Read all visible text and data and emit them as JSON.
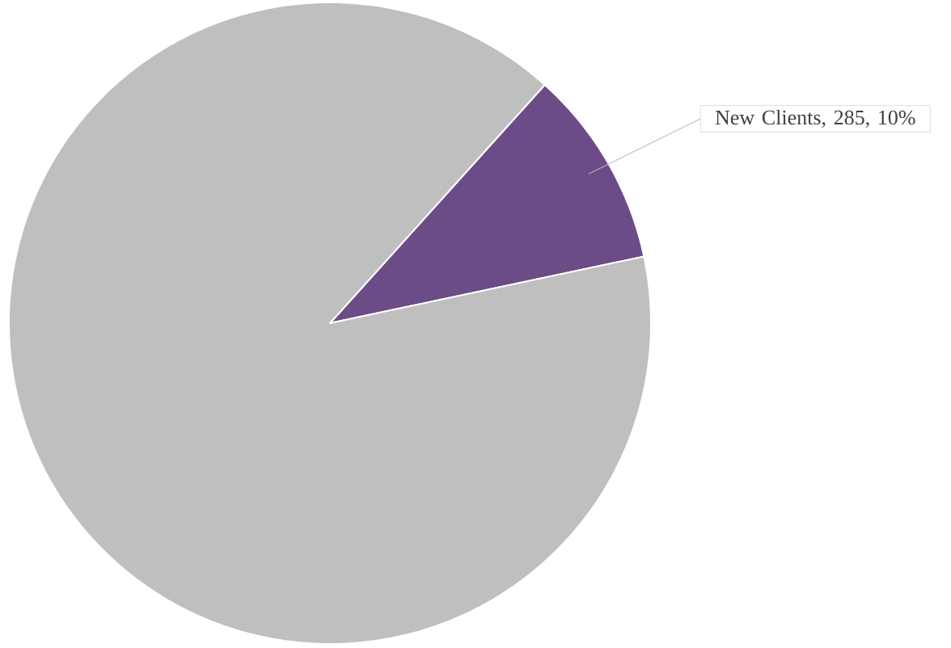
{
  "chart_data": {
    "type": "pie",
    "categories": [
      "New Clients",
      null
    ],
    "values": [
      10,
      90
    ],
    "colors": [
      "#6c4c87",
      "#bfbfbf"
    ],
    "value_labels": [
      ", 285, 10%",
      null
    ]
  }
}
